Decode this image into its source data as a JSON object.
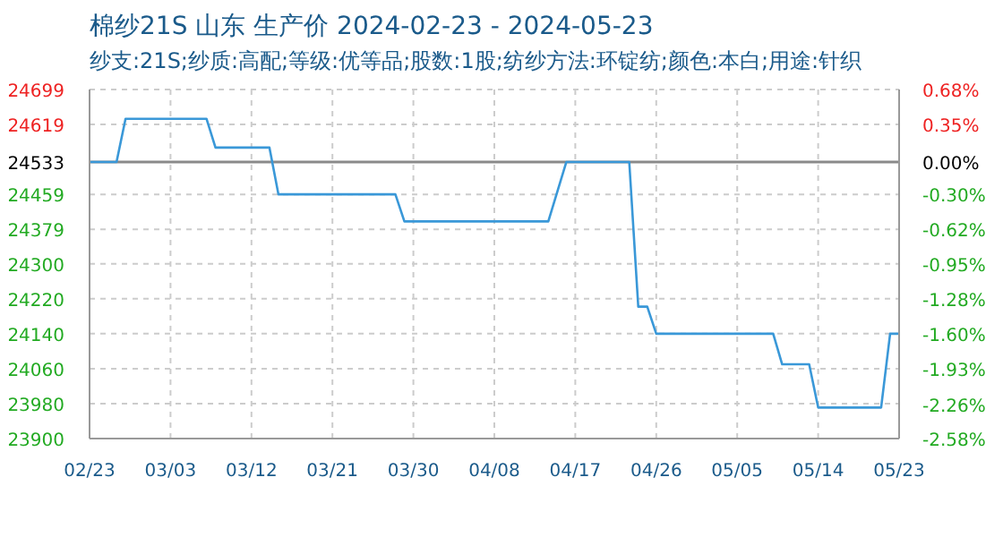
{
  "chart_data": {
    "type": "line",
    "title": "棉纱21S 山东 生产价 2024-02-23 - 2024-05-23",
    "subtitle": "纱支:21S;纱质:高配;等级:优等品;股数:1股;纺纱方法:环锭纺;颜色:本白;用途:针织",
    "x": [
      "2024-02-23",
      "2024-02-26",
      "2024-02-27",
      "2024-03-07",
      "2024-03-08",
      "2024-03-14",
      "2024-03-15",
      "2024-03-28",
      "2024-03-29",
      "2024-04-14",
      "2024-04-16",
      "2024-04-23",
      "2024-04-24",
      "2024-04-25",
      "2024-04-26",
      "2024-05-09",
      "2024-05-10",
      "2024-05-13",
      "2024-05-14",
      "2024-05-21",
      "2024-05-22",
      "2024-05-23"
    ],
    "series": [
      {
        "color": "#3a98d8",
        "values": [
          24533,
          24533,
          24632,
          24632,
          24566,
          24566,
          24459,
          24459,
          24397,
          24397,
          24533,
          24533,
          24202,
          24202,
          24140,
          24140,
          24070,
          24070,
          23971,
          23971,
          24140,
          24140
        ]
      }
    ],
    "xlim": [
      "2024-02-23",
      "2024-05-23"
    ],
    "xticks": [
      {
        "value": "2024-02-23",
        "label": "02/23"
      },
      {
        "value": "2024-03-03",
        "label": "03/03"
      },
      {
        "value": "2024-03-12",
        "label": "03/12"
      },
      {
        "value": "2024-03-21",
        "label": "03/21"
      },
      {
        "value": "2024-03-30",
        "label": "03/30"
      },
      {
        "value": "2024-04-08",
        "label": "04/08"
      },
      {
        "value": "2024-04-17",
        "label": "04/17"
      },
      {
        "value": "2024-04-26",
        "label": "04/26"
      },
      {
        "value": "2024-05-05",
        "label": "05/05"
      },
      {
        "value": "2024-05-14",
        "label": "05/14"
      },
      {
        "value": "2024-05-23",
        "label": "05/23"
      }
    ],
    "ylim": [
      23900,
      24699
    ],
    "yticks": [
      23900,
      23980,
      24060,
      24140,
      24220,
      24300,
      24379,
      24459,
      24533,
      24619,
      24699
    ],
    "y2lim": [
      -2.58,
      0.68
    ],
    "y2ticks": [
      {
        "value": -2.58,
        "label": "-2.58%"
      },
      {
        "value": -2.26,
        "label": "-2.26%"
      },
      {
        "value": -1.93,
        "label": "-1.93%"
      },
      {
        "value": -1.6,
        "label": "-1.60%"
      },
      {
        "value": -1.28,
        "label": "-1.28%"
      },
      {
        "value": -0.95,
        "label": "-0.95%"
      },
      {
        "value": -0.62,
        "label": "-0.62%"
      },
      {
        "value": -0.3,
        "label": "-0.30%"
      },
      {
        "value": 0,
        "label": "0.00%"
      },
      {
        "value": 0.35,
        "label": "0.35%"
      },
      {
        "value": 0.68,
        "label": "0.68%"
      }
    ],
    "ref_lines": [
      {
        "axis": "y",
        "value": 24533,
        "color": "#8a8a8a"
      }
    ],
    "grid": true,
    "marker": "none",
    "line_style": "solid"
  }
}
